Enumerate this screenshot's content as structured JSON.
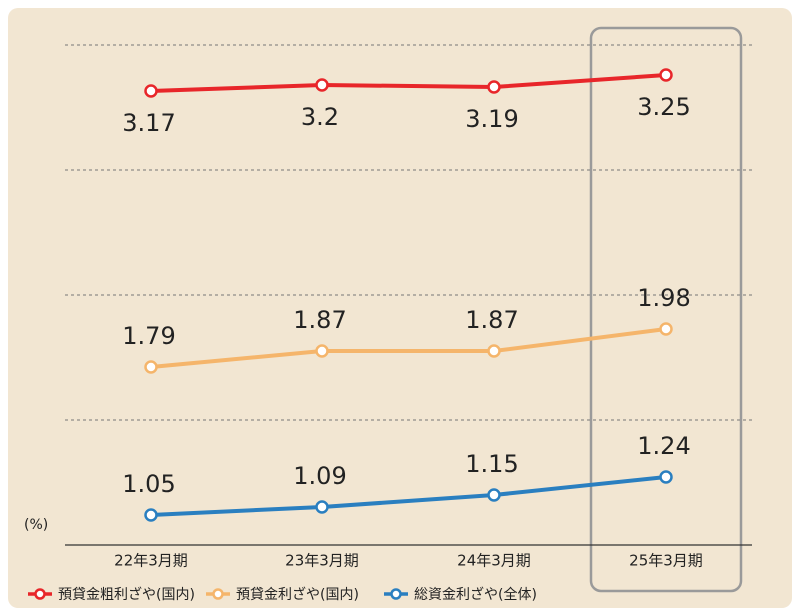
{
  "chart_data": {
    "type": "line",
    "y_label": "(%)",
    "categories": [
      "22年3月期",
      "23年3月期",
      "24年3月期",
      "25年3月期"
    ],
    "series": [
      {
        "name": "預貸金粗利ざや(国内)",
        "color": "#e8262a",
        "values": [
          3.17,
          3.2,
          3.19,
          3.25
        ]
      },
      {
        "name": "預貸金利ざや(国内)",
        "color": "#f5b56b",
        "values": [
          1.79,
          1.87,
          1.87,
          1.98
        ]
      },
      {
        "name": "総資金利ざや(全体)",
        "color": "#2a7fc0",
        "values": [
          1.05,
          1.09,
          1.15,
          1.24
        ]
      }
    ],
    "ylim": [
      0.9,
      3.4
    ],
    "yticks": [
      1.525,
      2.15,
      2.775,
      3.4
    ],
    "grid": true
  }
}
